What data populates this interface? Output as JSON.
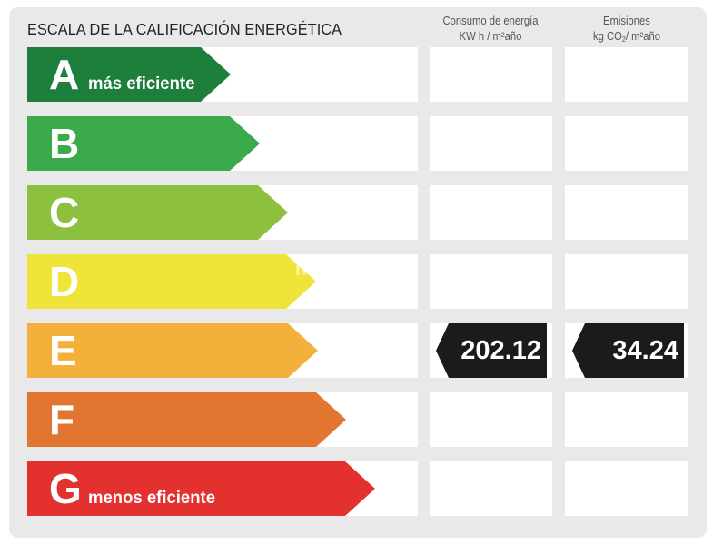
{
  "header": {
    "title": "ESCALA DE LA CALIFICACIÓN ENERGÉTICA",
    "col_consumo_line1": "Consumo de energía",
    "col_consumo_line2": "KW h / m²año",
    "col_emisiones_line1": "Emisiones",
    "col_emisiones_unit_pre": "kg CO",
    "col_emisiones_unit_sub": "2",
    "col_emisiones_unit_post": "/ m²año"
  },
  "rating_scale": [
    {
      "letter": "A",
      "caption": "más eficiente",
      "color": "#1e7f3c"
    },
    {
      "letter": "B",
      "caption": "",
      "color": "#3aaa4a"
    },
    {
      "letter": "C",
      "caption": "",
      "color": "#8dc03e"
    },
    {
      "letter": "D",
      "caption": "",
      "color": "#efe53a"
    },
    {
      "letter": "E",
      "caption": "",
      "color": "#f3b03a"
    },
    {
      "letter": "F",
      "caption": "",
      "color": "#e2752f"
    },
    {
      "letter": "G",
      "caption": "menos eficiente",
      "color": "#e2312f"
    }
  ],
  "current_rating": {
    "letter": "E",
    "consumo": "202.12",
    "emisiones": "34.24",
    "marker_color": "#1b1b1b"
  },
  "watermark": "habitaclia"
}
